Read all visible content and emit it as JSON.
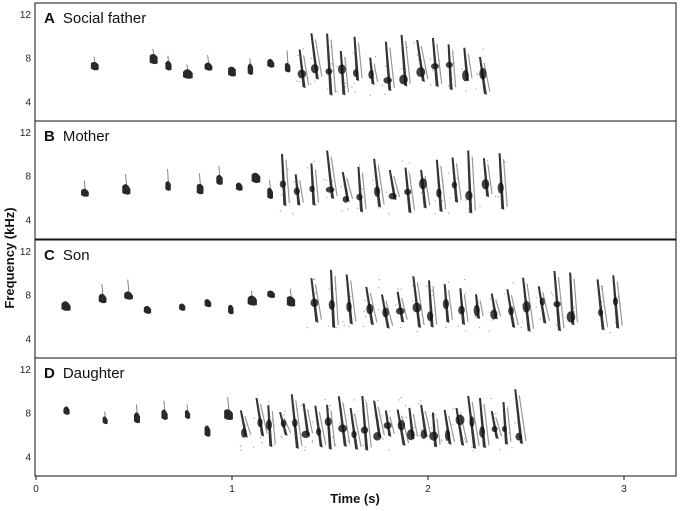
{
  "figure": {
    "x_axis": {
      "title": "Time (s)",
      "ticks": [
        "0",
        "1",
        "2",
        "3"
      ]
    },
    "y_axis": {
      "title": "Frequency (kHz)",
      "ticks": [
        "4",
        "8",
        "12"
      ]
    },
    "panels": [
      {
        "letter": "A",
        "title": "Social father"
      },
      {
        "letter": "B",
        "title": "Mother"
      },
      {
        "letter": "C",
        "title": "Son"
      },
      {
        "letter": "D",
        "title": "Daughter"
      }
    ]
  }
}
